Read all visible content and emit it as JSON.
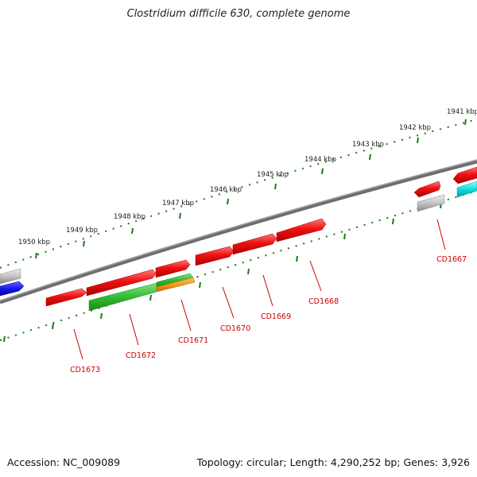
{
  "title": "Clostridium difficile 630, complete genome",
  "footer": {
    "accession": "Accession: NC_009089",
    "summary": "Topology: circular; Length: 4,290,252 bp; Genes: 3,926"
  },
  "colors": {
    "backbone": "#7a7a7a",
    "tick": "#1a7a1a",
    "gene_label": "#cc0000",
    "scale_label": "#222222",
    "red_gene": "#ee1111",
    "green_gene": "#33bb33",
    "orange_gene": "#f59a1b",
    "blue_gene": "#1a1aee",
    "cyan_gene": "#11dddd",
    "gray_gene": "#bbbbbb"
  },
  "scale_labels": [
    "1941 kbp",
    "1942 kbp",
    "1943 kbp",
    "1944 kbp",
    "1945 kbp",
    "1946 kbp",
    "1947 kbp",
    "1948 kbp",
    "1949 kbp",
    "1950 kbp"
  ],
  "gene_labels": [
    "CD1667",
    "CD1668",
    "CD1669",
    "CD1670",
    "CD1671",
    "CD1672",
    "CD1673"
  ]
}
